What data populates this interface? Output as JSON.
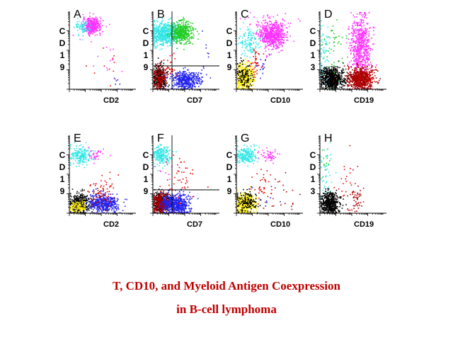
{
  "caption": {
    "line1": "T, CD10, and Myeloid Antigen Coexpression",
    "line2": "in B-cell lymphoma"
  },
  "colors": {
    "cyan": "#33e6e6",
    "magenta": "#ff33ff",
    "green": "#22cc22",
    "blue": "#2222ee",
    "black": "#000000",
    "darkred": "#aa0000",
    "yellow": "#ffee00",
    "red": "#ee0000",
    "brown": "#661111",
    "lightgreen": "#66dd66"
  },
  "chart_data": [
    {
      "type": "scatter",
      "panel": "A",
      "xlabel": "CD2",
      "ylabel": [
        "C",
        "D",
        "1",
        "9"
      ],
      "quadrant": false,
      "clusters": [
        {
          "color": "magenta",
          "cx": 0.35,
          "cy": 0.82,
          "sx": 0.07,
          "sy": 0.05,
          "n": 420
        },
        {
          "color": "cyan",
          "cx": 0.2,
          "cy": 0.8,
          "sx": 0.06,
          "sy": 0.05,
          "n": 70
        },
        {
          "color": "red",
          "cx": 0.55,
          "cy": 0.3,
          "sx": 0.12,
          "sy": 0.15,
          "n": 10
        },
        {
          "color": "magenta",
          "cx": 0.55,
          "cy": 0.35,
          "sx": 0.12,
          "sy": 0.15,
          "n": 12
        },
        {
          "color": "blue",
          "cx": 0.75,
          "cy": 0.12,
          "sx": 0.04,
          "sy": 0.05,
          "n": 6
        }
      ]
    },
    {
      "type": "scatter",
      "panel": "B",
      "xlabel": "CD7",
      "ylabel": [
        "C",
        "D",
        "1",
        "9"
      ],
      "quadrant": true,
      "clusters": [
        {
          "color": "cyan",
          "cx": 0.18,
          "cy": 0.72,
          "sx": 0.12,
          "sy": 0.07,
          "n": 650
        },
        {
          "color": "green",
          "cx": 0.45,
          "cy": 0.74,
          "sx": 0.09,
          "sy": 0.07,
          "n": 420
        },
        {
          "color": "black",
          "cx": 0.1,
          "cy": 0.14,
          "sx": 0.05,
          "sy": 0.08,
          "n": 300
        },
        {
          "color": "darkred",
          "cx": 0.1,
          "cy": 0.14,
          "sx": 0.05,
          "sy": 0.08,
          "n": 180
        },
        {
          "color": "blue",
          "cx": 0.5,
          "cy": 0.12,
          "sx": 0.11,
          "sy": 0.06,
          "n": 420
        },
        {
          "color": "red",
          "cx": 0.25,
          "cy": 0.3,
          "sx": 0.05,
          "sy": 0.1,
          "n": 30
        },
        {
          "color": "blue",
          "cx": 0.8,
          "cy": 0.4,
          "sx": 0.05,
          "sy": 0.2,
          "n": 12
        }
      ]
    },
    {
      "type": "scatter",
      "panel": "C",
      "xlabel": "CD10",
      "ylabel": [
        "C",
        "D",
        "1",
        "9"
      ],
      "quadrant": false,
      "clusters": [
        {
          "color": "magenta",
          "cx": 0.55,
          "cy": 0.7,
          "sx": 0.1,
          "sy": 0.08,
          "n": 650
        },
        {
          "color": "cyan",
          "cx": 0.2,
          "cy": 0.62,
          "sx": 0.09,
          "sy": 0.1,
          "n": 120
        },
        {
          "color": "yellow",
          "cx": 0.12,
          "cy": 0.16,
          "sx": 0.07,
          "sy": 0.09,
          "n": 400
        },
        {
          "color": "black",
          "cx": 0.12,
          "cy": 0.16,
          "sx": 0.07,
          "sy": 0.09,
          "n": 120
        },
        {
          "color": "red",
          "cx": 0.3,
          "cy": 0.35,
          "sx": 0.05,
          "sy": 0.08,
          "n": 40
        },
        {
          "color": "magenta",
          "cx": 0.5,
          "cy": 0.9,
          "sx": 0.25,
          "sy": 0.06,
          "n": 30
        },
        {
          "color": "blue",
          "cx": 0.4,
          "cy": 0.3,
          "sx": 0.05,
          "sy": 0.05,
          "n": 15
        }
      ]
    },
    {
      "type": "scatter",
      "panel": "D",
      "xlabel": "CD19",
      "ylabel": [
        "C",
        "D",
        "1",
        "3"
      ],
      "quadrant": false,
      "clusters": [
        {
          "color": "magenta",
          "cx": 0.63,
          "cy": 0.55,
          "sx": 0.08,
          "sy": 0.2,
          "n": 650
        },
        {
          "color": "black",
          "cx": 0.18,
          "cy": 0.14,
          "sx": 0.09,
          "sy": 0.07,
          "n": 700
        },
        {
          "color": "darkred",
          "cx": 0.63,
          "cy": 0.14,
          "sx": 0.1,
          "sy": 0.07,
          "n": 700
        },
        {
          "color": "cyan",
          "cx": 0.05,
          "cy": 0.5,
          "sx": 0.05,
          "sy": 0.2,
          "n": 60
        },
        {
          "color": "green",
          "cx": 0.2,
          "cy": 0.55,
          "sx": 0.08,
          "sy": 0.2,
          "n": 40
        },
        {
          "color": "red",
          "cx": 0.8,
          "cy": 0.2,
          "sx": 0.05,
          "sy": 0.1,
          "n": 15
        }
      ]
    },
    {
      "type": "scatter",
      "panel": "E",
      "xlabel": "CD2",
      "ylabel": [
        "C",
        "D",
        "1",
        "9"
      ],
      "quadrant": false,
      "clusters": [
        {
          "color": "cyan",
          "cx": 0.15,
          "cy": 0.75,
          "sx": 0.09,
          "sy": 0.06,
          "n": 200
        },
        {
          "color": "magenta",
          "cx": 0.4,
          "cy": 0.75,
          "sx": 0.07,
          "sy": 0.05,
          "n": 35
        },
        {
          "color": "black",
          "cx": 0.15,
          "cy": 0.13,
          "sx": 0.08,
          "sy": 0.07,
          "n": 350
        },
        {
          "color": "yellow",
          "cx": 0.12,
          "cy": 0.08,
          "sx": 0.06,
          "sy": 0.04,
          "n": 100
        },
        {
          "color": "blue",
          "cx": 0.53,
          "cy": 0.13,
          "sx": 0.12,
          "sy": 0.06,
          "n": 450
        },
        {
          "color": "red",
          "cx": 0.55,
          "cy": 0.3,
          "sx": 0.1,
          "sy": 0.12,
          "n": 45
        },
        {
          "color": "darkred",
          "cx": 0.45,
          "cy": 0.2,
          "sx": 0.1,
          "sy": 0.1,
          "n": 30
        }
      ]
    },
    {
      "type": "scatter",
      "panel": "F",
      "xlabel": "CD7",
      "ylabel": [
        "C",
        "D",
        "1",
        "9"
      ],
      "quadrant": true,
      "clusters": [
        {
          "color": "cyan",
          "cx": 0.12,
          "cy": 0.75,
          "sx": 0.07,
          "sy": 0.06,
          "n": 220
        },
        {
          "color": "black",
          "cx": 0.12,
          "cy": 0.13,
          "sx": 0.07,
          "sy": 0.07,
          "n": 300
        },
        {
          "color": "darkred",
          "cx": 0.12,
          "cy": 0.13,
          "sx": 0.07,
          "sy": 0.07,
          "n": 300
        },
        {
          "color": "blue",
          "cx": 0.35,
          "cy": 0.12,
          "sx": 0.11,
          "sy": 0.07,
          "n": 600
        },
        {
          "color": "red",
          "cx": 0.4,
          "cy": 0.4,
          "sx": 0.12,
          "sy": 0.2,
          "n": 50
        },
        {
          "color": "magenta",
          "cx": 0.2,
          "cy": 0.55,
          "sx": 0.08,
          "sy": 0.1,
          "n": 10
        }
      ]
    },
    {
      "type": "scatter",
      "panel": "G",
      "xlabel": "CD10",
      "ylabel": [
        "C",
        "D",
        "1",
        "9"
      ],
      "quadrant": false,
      "clusters": [
        {
          "color": "cyan",
          "cx": 0.15,
          "cy": 0.75,
          "sx": 0.09,
          "sy": 0.06,
          "n": 220
        },
        {
          "color": "magenta",
          "cx": 0.5,
          "cy": 0.75,
          "sx": 0.08,
          "sy": 0.04,
          "n": 50
        },
        {
          "color": "yellow",
          "cx": 0.12,
          "cy": 0.12,
          "sx": 0.08,
          "sy": 0.07,
          "n": 400
        },
        {
          "color": "black",
          "cx": 0.15,
          "cy": 0.15,
          "sx": 0.09,
          "sy": 0.08,
          "n": 150
        },
        {
          "color": "red",
          "cx": 0.4,
          "cy": 0.35,
          "sx": 0.12,
          "sy": 0.12,
          "n": 35
        },
        {
          "color": "darkred",
          "cx": 0.65,
          "cy": 0.25,
          "sx": 0.15,
          "sy": 0.12,
          "n": 20
        },
        {
          "color": "blue",
          "cx": 0.45,
          "cy": 0.2,
          "sx": 0.1,
          "sy": 0.08,
          "n": 8
        }
      ]
    },
    {
      "type": "scatter",
      "panel": "H",
      "xlabel": "CD19",
      "ylabel": [
        "C",
        "D",
        "1",
        "3"
      ],
      "quadrant": false,
      "clusters": [
        {
          "color": "black",
          "cx": 0.15,
          "cy": 0.13,
          "sx": 0.07,
          "sy": 0.07,
          "n": 500
        },
        {
          "color": "darkred",
          "cx": 0.55,
          "cy": 0.15,
          "sx": 0.06,
          "sy": 0.09,
          "n": 45
        },
        {
          "color": "cyan",
          "cx": 0.08,
          "cy": 0.55,
          "sx": 0.06,
          "sy": 0.15,
          "n": 40
        },
        {
          "color": "green",
          "cx": 0.1,
          "cy": 0.65,
          "sx": 0.05,
          "sy": 0.1,
          "n": 12
        },
        {
          "color": "red",
          "cx": 0.45,
          "cy": 0.4,
          "sx": 0.12,
          "sy": 0.15,
          "n": 25
        }
      ]
    }
  ]
}
